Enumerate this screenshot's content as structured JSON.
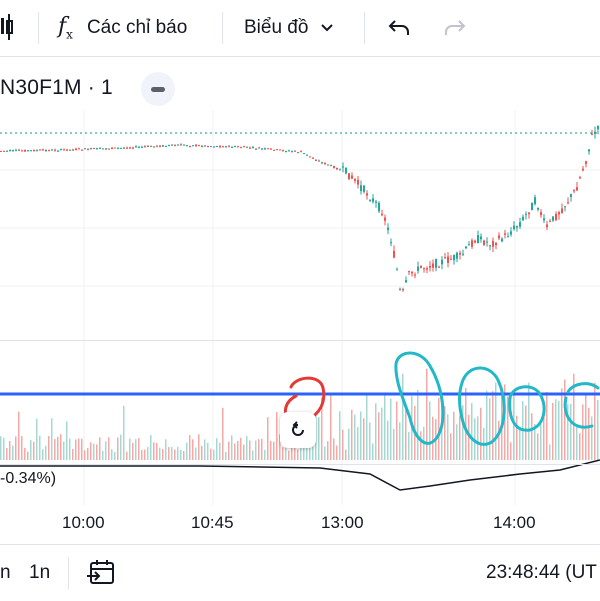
{
  "toolbar": {
    "indicators_label": "Các chỉ báo",
    "chart_type_label": "Biểu đồ"
  },
  "symbol": {
    "title": "N30F1M · 1"
  },
  "indicator": {
    "value_text": "-0.34%)"
  },
  "time_axis": {
    "labels": [
      "10:00",
      "10:45",
      "13:00",
      "14:00"
    ]
  },
  "bottom_bar": {
    "range_1": "n",
    "range_2": "1n",
    "clock": "23:48:44 (UT"
  },
  "colors": {
    "up": "#26a69a",
    "down": "#ef5350",
    "horizontal_line": "#2962ff",
    "annotation_cyan": "#22b8c8",
    "annotation_red": "#e53935",
    "price_line": "#089981"
  },
  "icons": [
    "candles-icon",
    "fx-icon",
    "chevron-down-icon",
    "undo-icon",
    "redo-icon",
    "minus-icon",
    "reset-icon",
    "calendar-goto-icon"
  ]
}
